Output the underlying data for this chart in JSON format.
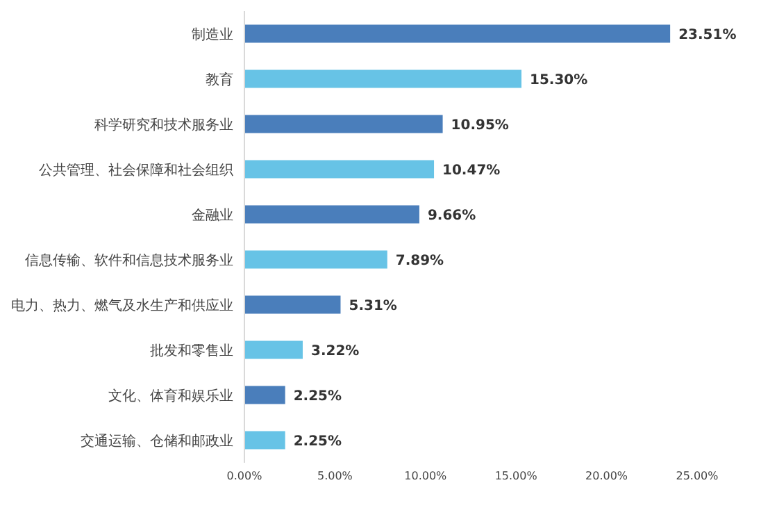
{
  "chart_data": {
    "type": "bar",
    "orientation": "horizontal",
    "categories": [
      "制造业",
      "教育",
      "科学研究和技术服务业",
      "公共管理、社会保障和社会组织",
      "金融业",
      "信息传输、软件和信息技术服务业",
      "电力、热力、燃气及水生产和供应业",
      "批发和零售业",
      "文化、体育和娱乐业",
      "交通运输、仓储和邮政业"
    ],
    "values": [
      23.51,
      15.3,
      10.95,
      10.47,
      9.66,
      7.89,
      5.31,
      3.22,
      2.25,
      2.25
    ],
    "value_labels": [
      "23.51%",
      "15.30%",
      "10.95%",
      "10.47%",
      "9.66%",
      "7.89%",
      "5.31%",
      "3.22%",
      "2.25%",
      "2.25%"
    ],
    "colors": [
      "#4a7ebb",
      "#67c3e6",
      "#4a7ebb",
      "#67c3e6",
      "#4a7ebb",
      "#67c3e6",
      "#4a7ebb",
      "#67c3e6",
      "#4a7ebb",
      "#67c3e6"
    ],
    "xlim": [
      0,
      25
    ],
    "xticks": [
      {
        "value": 0,
        "label": "0.00%"
      },
      {
        "value": 5,
        "label": "5.00%"
      },
      {
        "value": 10,
        "label": "10.00%"
      },
      {
        "value": 15,
        "label": "15.00%"
      },
      {
        "value": 20,
        "label": "20.00%"
      },
      {
        "value": 25,
        "label": "25.00%"
      }
    ],
    "grid": false
  }
}
